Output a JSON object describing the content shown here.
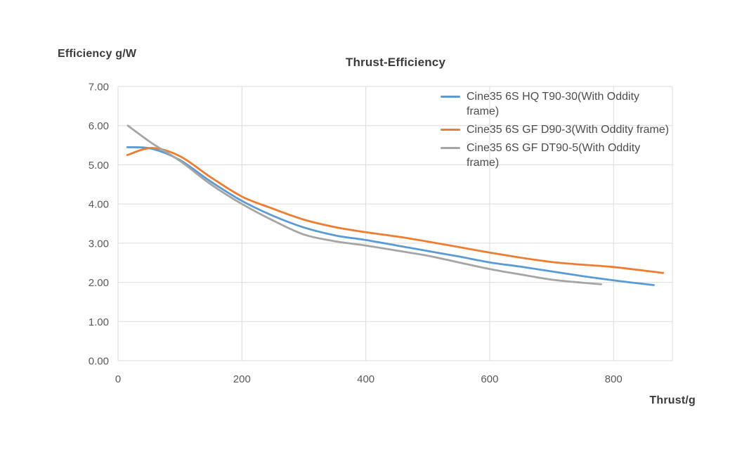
{
  "chart_data": {
    "type": "line",
    "title": "Thrust-Efficiency",
    "y_axis_title": "Efficiency g/W",
    "x_axis_title": "Thrust/g",
    "xlim": [
      0,
      895
    ],
    "ylim": [
      0,
      7
    ],
    "grid": true,
    "line_smoothing": true,
    "markers": false,
    "legend_position": "top-right-inside",
    "x_tick_values": [
      0,
      200,
      400,
      600,
      800
    ],
    "x_tick_labels": [
      "0",
      "200",
      "400",
      "600",
      "800"
    ],
    "y_tick_values": [
      7,
      6,
      5,
      4,
      3,
      2,
      1,
      0
    ],
    "y_tick_labels": [
      "7.00",
      "6.00",
      "5.00",
      "4.00",
      "3.00",
      "2.00",
      "1.00",
      "0.00"
    ],
    "series": [
      {
        "name": "Cine35 6S HQ T90-30(With Oddity frame)",
        "color": "#5B9BD5",
        "points": [
          [
            15,
            5.45
          ],
          [
            55,
            5.41
          ],
          [
            100,
            5.12
          ],
          [
            150,
            4.57
          ],
          [
            200,
            4.08
          ],
          [
            250,
            3.7
          ],
          [
            300,
            3.4
          ],
          [
            350,
            3.2
          ],
          [
            400,
            3.08
          ],
          [
            450,
            2.94
          ],
          [
            500,
            2.8
          ],
          [
            550,
            2.66
          ],
          [
            600,
            2.51
          ],
          [
            650,
            2.4
          ],
          [
            700,
            2.28
          ],
          [
            750,
            2.16
          ],
          [
            800,
            2.05
          ],
          [
            865,
            1.93
          ]
        ]
      },
      {
        "name": "Cine35 6S GF D90-3(With Oddity frame)",
        "color": "#ED7D31",
        "points": [
          [
            15,
            5.25
          ],
          [
            55,
            5.43
          ],
          [
            100,
            5.22
          ],
          [
            150,
            4.68
          ],
          [
            200,
            4.19
          ],
          [
            250,
            3.88
          ],
          [
            300,
            3.6
          ],
          [
            350,
            3.41
          ],
          [
            400,
            3.28
          ],
          [
            450,
            3.17
          ],
          [
            500,
            3.04
          ],
          [
            550,
            2.9
          ],
          [
            600,
            2.76
          ],
          [
            650,
            2.63
          ],
          [
            700,
            2.52
          ],
          [
            750,
            2.45
          ],
          [
            800,
            2.39
          ],
          [
            880,
            2.24
          ]
        ]
      },
      {
        "name": "Cine35 6S GF DT90-5(With Oddity frame)",
        "color": "#A5A5A5",
        "points": [
          [
            16,
            6.0
          ],
          [
            55,
            5.55
          ],
          [
            100,
            5.1
          ],
          [
            150,
            4.5
          ],
          [
            200,
            4.0
          ],
          [
            250,
            3.58
          ],
          [
            300,
            3.22
          ],
          [
            350,
            3.05
          ],
          [
            400,
            2.94
          ],
          [
            450,
            2.81
          ],
          [
            500,
            2.68
          ],
          [
            550,
            2.51
          ],
          [
            600,
            2.34
          ],
          [
            650,
            2.2
          ],
          [
            700,
            2.07
          ],
          [
            750,
            1.99
          ],
          [
            780,
            1.95
          ]
        ]
      }
    ]
  },
  "colors": {
    "background": "#ffffff",
    "gridline": "#dbdbdb",
    "plot_border": "#dbdbdb",
    "tick_text": "#595959",
    "title_text": "#3b3b3b",
    "legend_text": "#4d4d4d"
  }
}
